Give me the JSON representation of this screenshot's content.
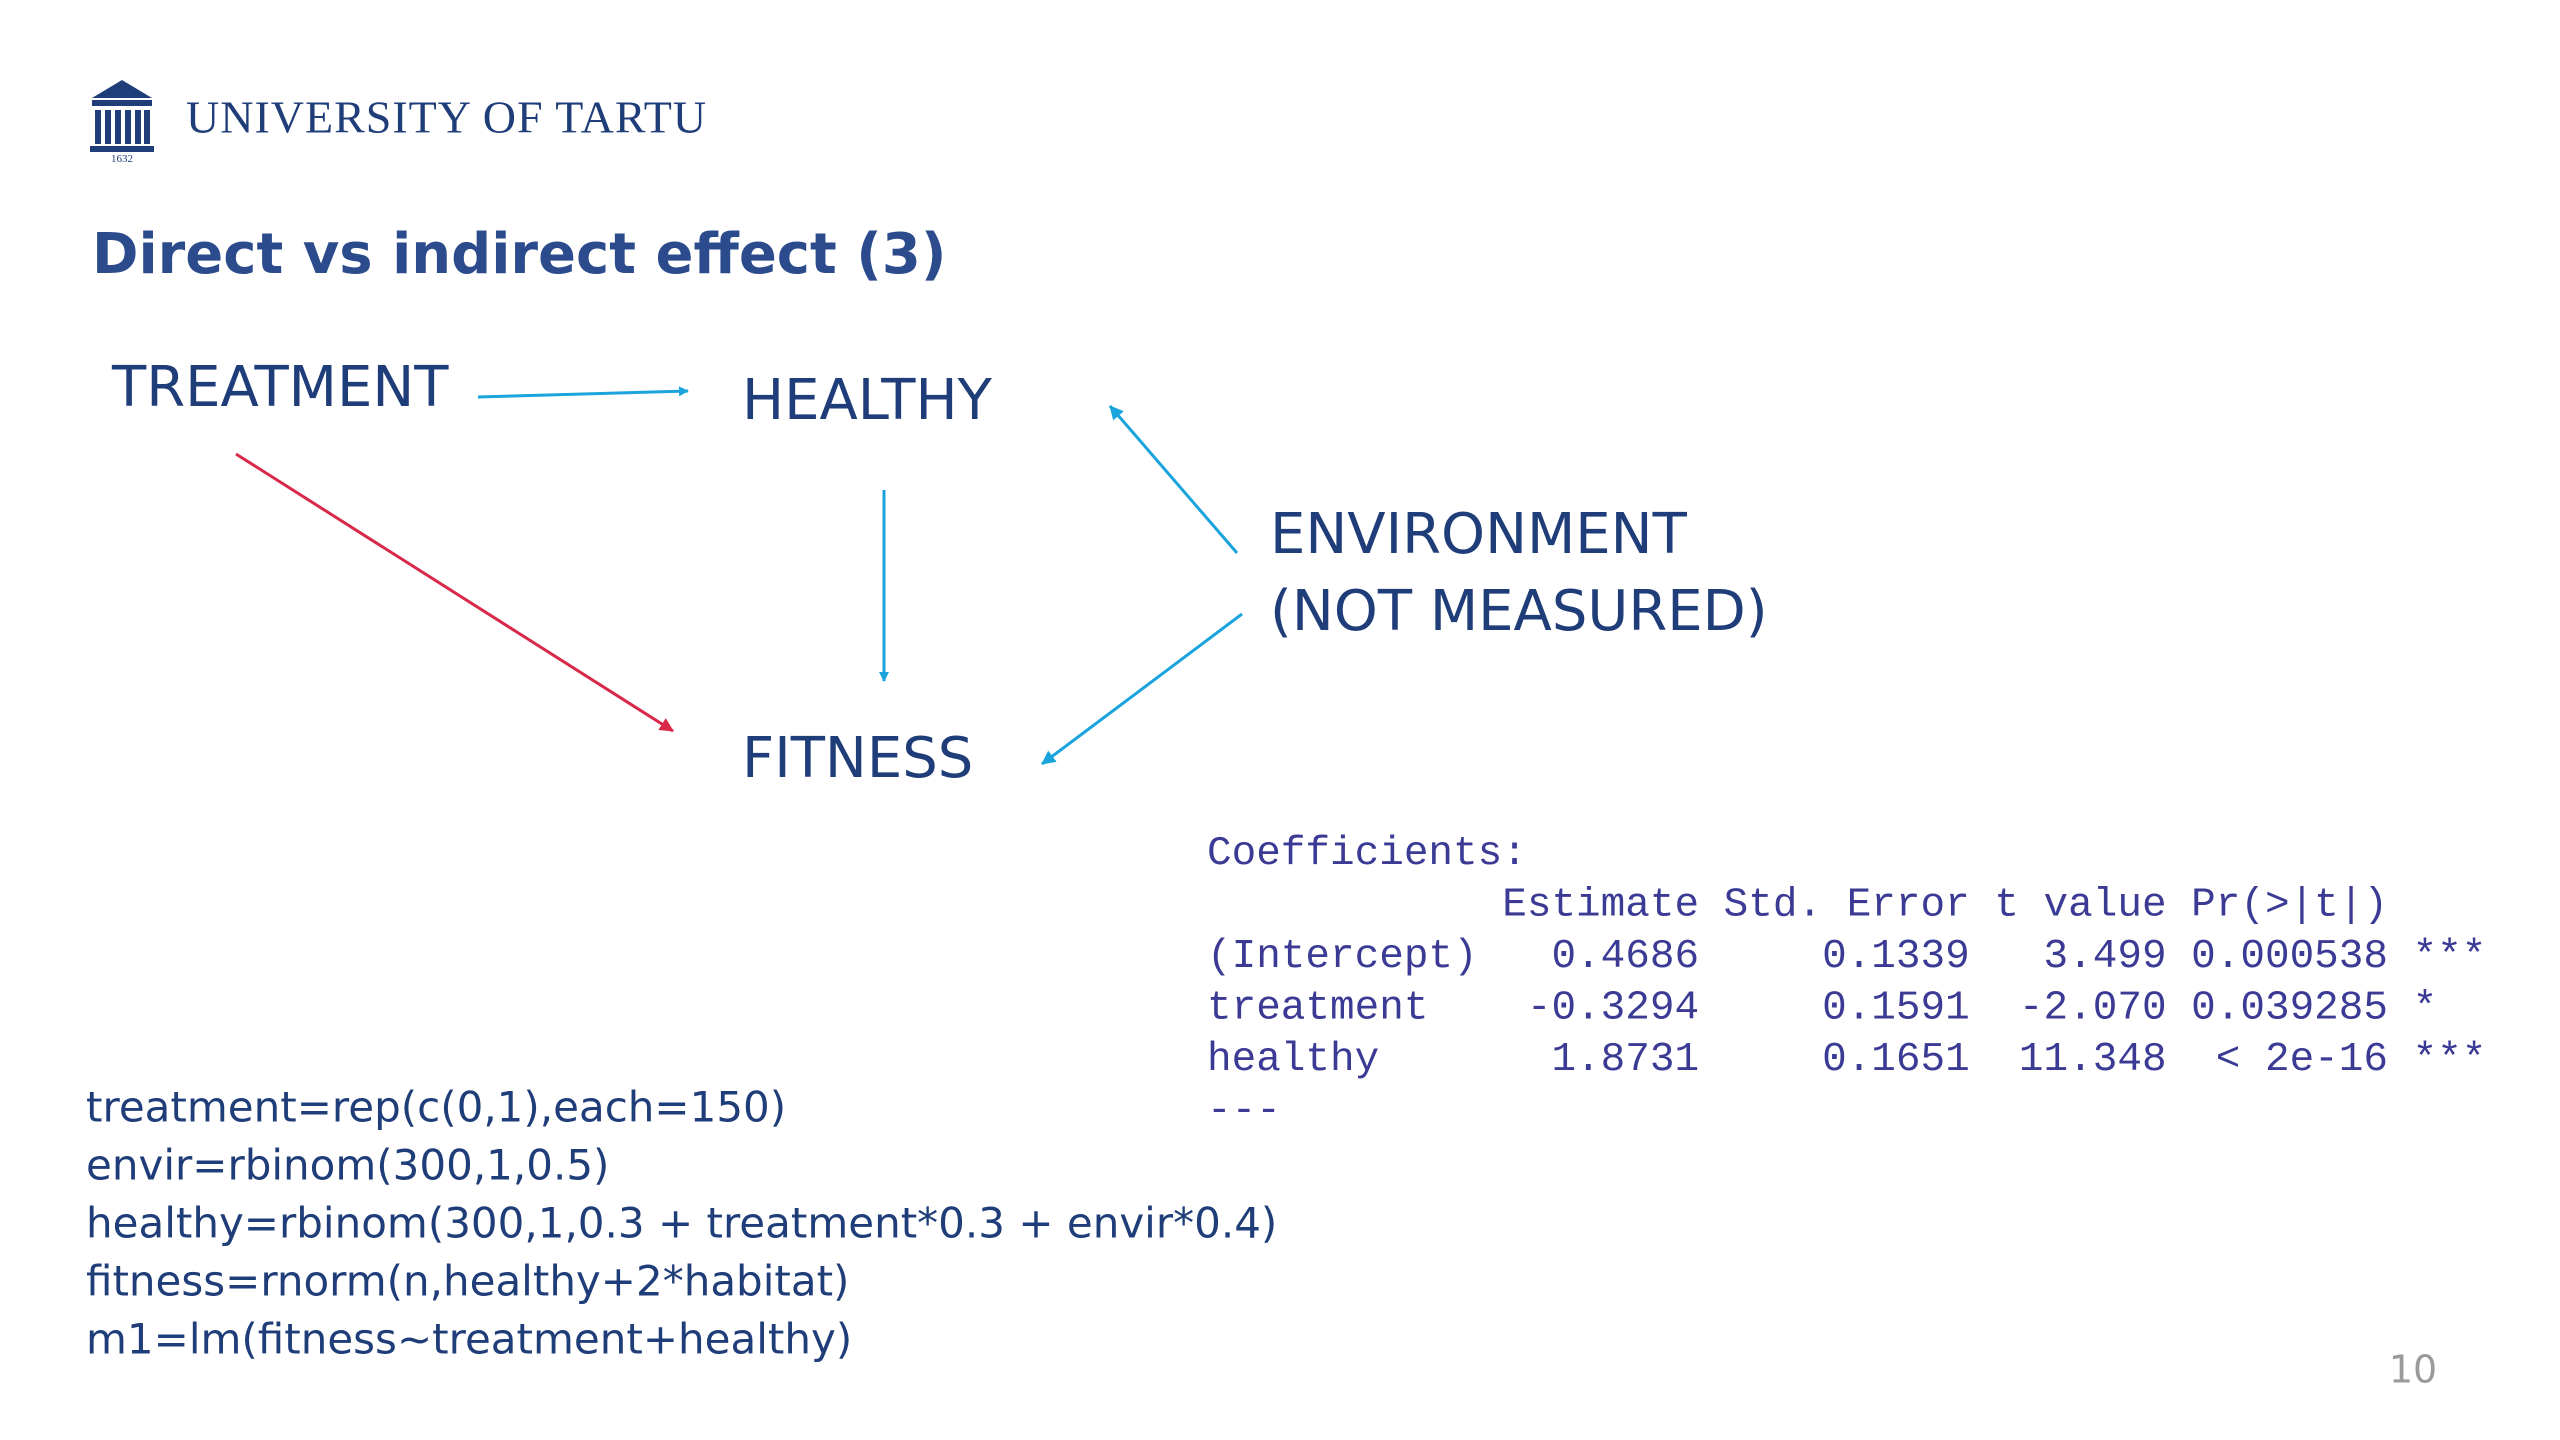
{
  "header": {
    "university": "UNIVERSITY OF TARTU",
    "logo_year": "1632"
  },
  "title": "Direct vs indirect effect (3)",
  "diagram": {
    "nodes": [
      {
        "label": "TREATMENT"
      },
      {
        "label": "HEALTHY"
      },
      {
        "label": "ENVIRONMENT"
      },
      {
        "label": "(NOT MEASURED)"
      },
      {
        "label": "FITNESS"
      }
    ]
  },
  "code": [
    "treatment=rep(c(0,1),each=150)",
    "envir=rbinom(300,1,0.5)",
    "healthy=rbinom(300,1,0.3 + treatment*0.3 + envir*0.4)",
    "fitness=rnorm(n,healthy+2*habitat)",
    "m1=lm(fitness~treatment+healthy)"
  ],
  "output": [
    "Coefficients:",
    "            Estimate Std. Error t value Pr(>|t|)    ",
    "(Intercept)   0.4686     0.1339   3.499 0.000538 ***",
    "treatment    -0.3294     0.1591  -2.070 0.039285 *  ",
    "healthy       1.8731     0.1651  11.348  < 2e-16 ***",
    "---"
  ],
  "page_number": "10"
}
